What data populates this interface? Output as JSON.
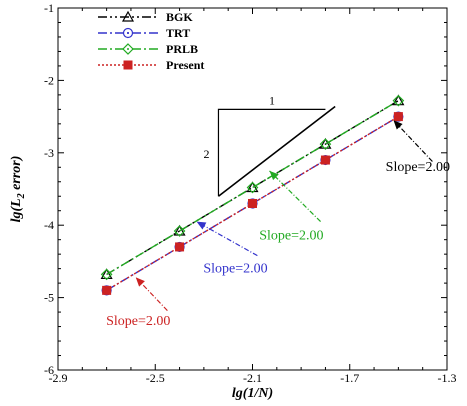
{
  "chart_data": {
    "type": "line",
    "xlabel": "lg(1/N)",
    "ylabel": "lg(L2 error)",
    "ylabel_main": "lg(L",
    "ylabel_sub": "2",
    "ylabel_rest": " error)",
    "xlim": [
      -2.9,
      -1.3
    ],
    "ylim": [
      -6,
      -1
    ],
    "xticks": [
      -2.9,
      -2.5,
      -2.1,
      -1.7,
      -1.3
    ],
    "xtick_labels": [
      "-2.9",
      "-2.5",
      "-2.1",
      "-1.7",
      "-1.3"
    ],
    "yticks": [
      -6,
      -5,
      -4,
      -3,
      -2,
      -1
    ],
    "ytick_labels": [
      "-6",
      "-5",
      "-4",
      "-3",
      "-2",
      "-1"
    ],
    "grid": false,
    "legend_position": "top-left",
    "series": [
      {
        "name": "BGK",
        "color": "#000000",
        "marker": "triangle",
        "dash": "dash-dot-dot",
        "x": [
          -2.7,
          -2.4,
          -2.1,
          -1.8,
          -1.5
        ],
        "y": [
          -4.68,
          -4.08,
          -3.48,
          -2.88,
          -2.28
        ]
      },
      {
        "name": "TRT",
        "color": "#3333cc",
        "marker": "circle",
        "dash": "dash-dot",
        "x": [
          -2.7,
          -2.4,
          -2.1,
          -1.8,
          -1.5
        ],
        "y": [
          -4.9,
          -4.3,
          -3.7,
          -3.1,
          -2.5
        ]
      },
      {
        "name": "PRLB",
        "color": "#22aa22",
        "marker": "diamond",
        "dash": "dash-dot",
        "x": [
          -2.7,
          -2.4,
          -2.1,
          -1.8,
          -1.5
        ],
        "y": [
          -4.68,
          -4.08,
          -3.48,
          -2.88,
          -2.28
        ]
      },
      {
        "name": "Present",
        "color": "#cc2222",
        "marker": "square",
        "dash": "dotted",
        "x": [
          -2.7,
          -2.4,
          -2.1,
          -1.8,
          -1.5
        ],
        "y": [
          -4.9,
          -4.3,
          -3.7,
          -3.1,
          -2.5
        ]
      }
    ],
    "slope_triangle": {
      "run_label": "1",
      "rise_label": "2",
      "corner": [
        -2.24,
        -2.4
      ],
      "end": [
        -1.8,
        -2.4
      ],
      "start": [
        -2.24,
        -3.6
      ]
    },
    "annotations": [
      {
        "text": "Slope=2.00",
        "color": "#000000",
        "text_at": [
          -1.42,
          -3.25
        ],
        "arrow_from": [
          -1.36,
          -3.12
        ],
        "arrow_to": [
          -1.52,
          -2.55
        ]
      },
      {
        "text": "Slope=2.00",
        "color": "#22aa22",
        "text_at": [
          -1.94,
          -4.2
        ],
        "arrow_from": [
          -1.82,
          -3.95
        ],
        "arrow_to": [
          -2.03,
          -3.25
        ]
      },
      {
        "text": "Slope=2.00",
        "color": "#3333cc",
        "text_at": [
          -2.17,
          -4.65
        ],
        "arrow_from": [
          -2.08,
          -4.42
        ],
        "arrow_to": [
          -2.33,
          -3.95
        ]
      },
      {
        "text": "Slope=2.00",
        "color": "#cc2222",
        "text_at": [
          -2.57,
          -5.38
        ],
        "arrow_from": [
          -2.45,
          -5.18
        ],
        "arrow_to": [
          -2.58,
          -4.72
        ]
      }
    ]
  }
}
